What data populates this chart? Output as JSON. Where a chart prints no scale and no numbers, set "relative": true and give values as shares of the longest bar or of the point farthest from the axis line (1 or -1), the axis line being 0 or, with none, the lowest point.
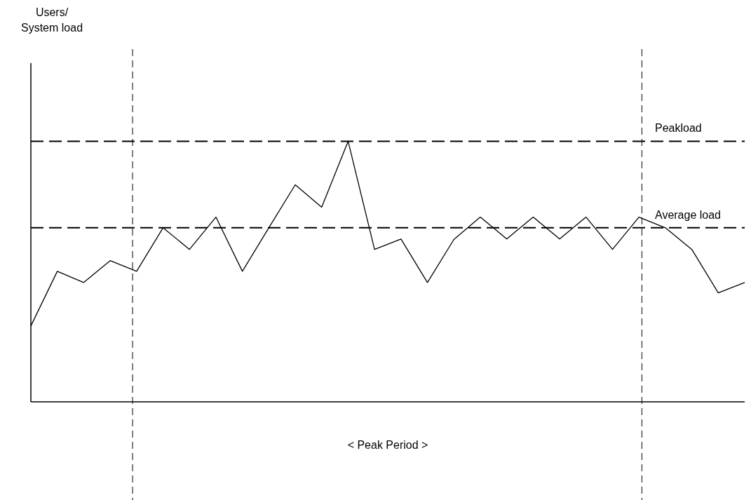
{
  "chart_data": {
    "type": "line",
    "relative": true,
    "color": "#000000",
    "categories": [
      null,
      null,
      null,
      null,
      null,
      null,
      null,
      null,
      null,
      null,
      null,
      null,
      null,
      null,
      null,
      null,
      null,
      null,
      null,
      null,
      null,
      null,
      null,
      null,
      null,
      null,
      null,
      null
    ],
    "values": [
      0.291,
      0.501,
      0.458,
      0.542,
      0.501,
      0.668,
      0.585,
      0.709,
      0.501,
      0.668,
      0.833,
      0.747,
      1.0,
      0.585,
      0.625,
      0.458,
      0.623,
      0.709,
      0.625,
      0.709,
      0.625,
      0.709,
      0.585,
      0.709,
      0.668,
      0.585,
      0.418,
      0.458
    ],
    "ref_lines": [
      {
        "axis": "y",
        "value": 1.0,
        "label": "Peakload",
        "line_style": "dashed"
      },
      {
        "axis": "y",
        "value": 0.668,
        "label": "Average load",
        "line_style": "dashed"
      }
    ],
    "annotations": [
      "Users/\nSystem load",
      "< Peak Period >"
    ],
    "line_style": "solid",
    "marker": "none"
  }
}
